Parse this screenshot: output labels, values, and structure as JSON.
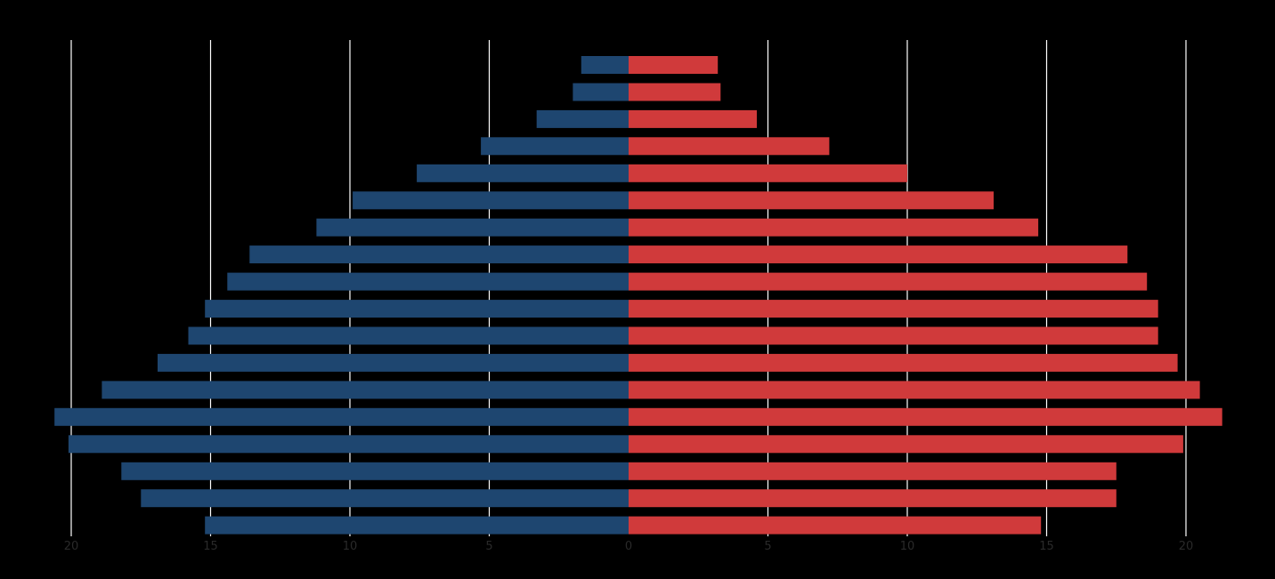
{
  "chart_data": {
    "type": "bar",
    "orientation": "horizontal-pyramid",
    "title": "",
    "xlabel": "",
    "ylabel": "",
    "xlim": [
      -20,
      20
    ],
    "x_ticks": [
      -20,
      -15,
      -10,
      -5,
      0,
      5,
      10,
      15,
      20
    ],
    "x_tick_labels": [
      "20",
      "15",
      "10",
      "5",
      "0",
      "5",
      "10",
      "15",
      "20"
    ],
    "grid": true,
    "legend": "none",
    "row_order": "top-to-bottom",
    "series": [
      {
        "side": "left",
        "color": "#1e4670",
        "values": [
          1.7,
          2.0,
          3.3,
          5.3,
          7.6,
          9.9,
          11.2,
          13.6,
          14.4,
          15.2,
          15.8,
          16.9,
          18.9,
          20.6,
          20.1,
          18.2,
          17.5,
          15.2
        ]
      },
      {
        "side": "right",
        "color": "#d03a3b",
        "values": [
          3.2,
          3.3,
          4.6,
          7.2,
          10.0,
          13.1,
          14.7,
          17.9,
          18.6,
          19.0,
          19.0,
          19.7,
          20.5,
          21.3,
          19.9,
          17.5,
          17.5,
          14.8
        ]
      }
    ]
  }
}
